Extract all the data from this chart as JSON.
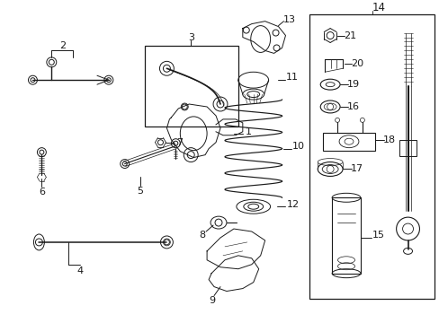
{
  "bg_color": "#ffffff",
  "fig_width": 4.89,
  "fig_height": 3.6,
  "dpi": 100,
  "xlim": [
    0,
    489
  ],
  "ylim": [
    0,
    360
  ]
}
